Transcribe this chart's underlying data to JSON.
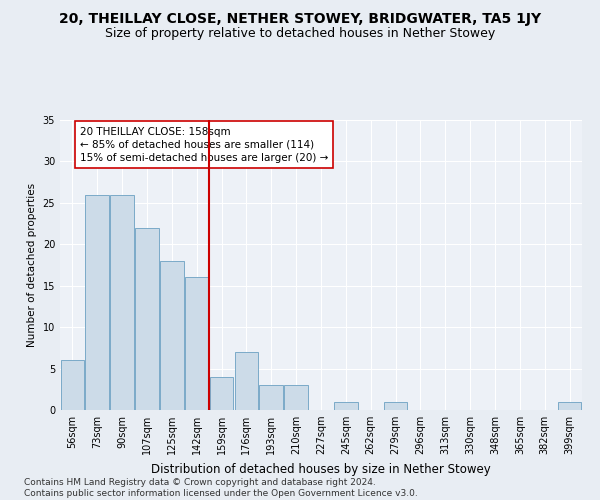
{
  "title": "20, THEILLAY CLOSE, NETHER STOWEY, BRIDGWATER, TA5 1JY",
  "subtitle": "Size of property relative to detached houses in Nether Stowey",
  "xlabel": "Distribution of detached houses by size in Nether Stowey",
  "ylabel": "Number of detached properties",
  "categories": [
    "56sqm",
    "73sqm",
    "90sqm",
    "107sqm",
    "125sqm",
    "142sqm",
    "159sqm",
    "176sqm",
    "193sqm",
    "210sqm",
    "227sqm",
    "245sqm",
    "262sqm",
    "279sqm",
    "296sqm",
    "313sqm",
    "330sqm",
    "348sqm",
    "365sqm",
    "382sqm",
    "399sqm"
  ],
  "values": [
    6,
    26,
    26,
    22,
    18,
    16,
    4,
    7,
    3,
    3,
    0,
    1,
    0,
    1,
    0,
    0,
    0,
    0,
    0,
    0,
    1
  ],
  "bar_color": "#ccdbe8",
  "bar_edge_color": "#7aaac8",
  "vline_x": 6.0,
  "vline_color": "#cc0000",
  "annotation_line1": "20 THEILLAY CLOSE: 158sqm",
  "annotation_line2": "← 85% of detached houses are smaller (114)",
  "annotation_line3": "15% of semi-detached houses are larger (20) →",
  "annotation_box_color": "#ffffff",
  "annotation_box_edge_color": "#cc0000",
  "ylim": [
    0,
    35
  ],
  "yticks": [
    0,
    5,
    10,
    15,
    20,
    25,
    30,
    35
  ],
  "bg_color": "#e8edf3",
  "plot_bg_color": "#edf1f7",
  "grid_color": "#ffffff",
  "footer": "Contains HM Land Registry data © Crown copyright and database right 2024.\nContains public sector information licensed under the Open Government Licence v3.0.",
  "title_fontsize": 10,
  "subtitle_fontsize": 9,
  "xlabel_fontsize": 8.5,
  "ylabel_fontsize": 7.5,
  "tick_fontsize": 7,
  "annotation_fontsize": 7.5,
  "footer_fontsize": 6.5
}
